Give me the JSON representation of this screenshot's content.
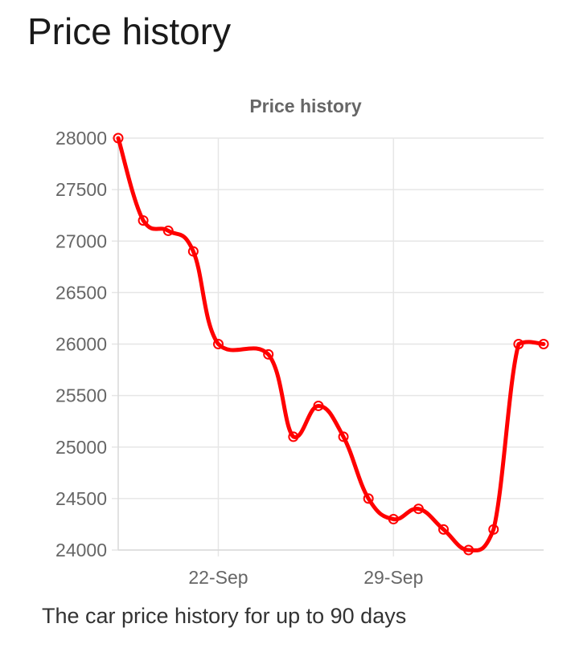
{
  "page": {
    "heading": "Price history",
    "caption": "The car price history for up to 90 days"
  },
  "colors": {
    "line": "#ff0000",
    "grid": "#e6e6e6",
    "text": "#666666"
  },
  "chart_data": {
    "type": "line",
    "title": "Price history",
    "xlabel": "",
    "ylabel": "",
    "ylim": [
      24000,
      28000
    ],
    "y_ticks": [
      "28000",
      "27500",
      "27000",
      "26500",
      "26000",
      "25500",
      "25000",
      "24500",
      "24000"
    ],
    "x_ticks": [
      {
        "label": "22-Sep",
        "x": 4
      },
      {
        "label": "29-Sep",
        "x": 11
      }
    ],
    "grid": true,
    "legend": "none",
    "series": [
      {
        "x": [
          0,
          1,
          2,
          3,
          4,
          6,
          7,
          8,
          9,
          10,
          11,
          12,
          13,
          14,
          15,
          16,
          17
        ],
        "values": [
          28000,
          27200,
          27100,
          26900,
          26000,
          25900,
          25100,
          25400,
          25100,
          24500,
          24300,
          24400,
          24200,
          24000,
          24200,
          26000,
          26000
        ],
        "color": "#ff0000"
      }
    ]
  }
}
